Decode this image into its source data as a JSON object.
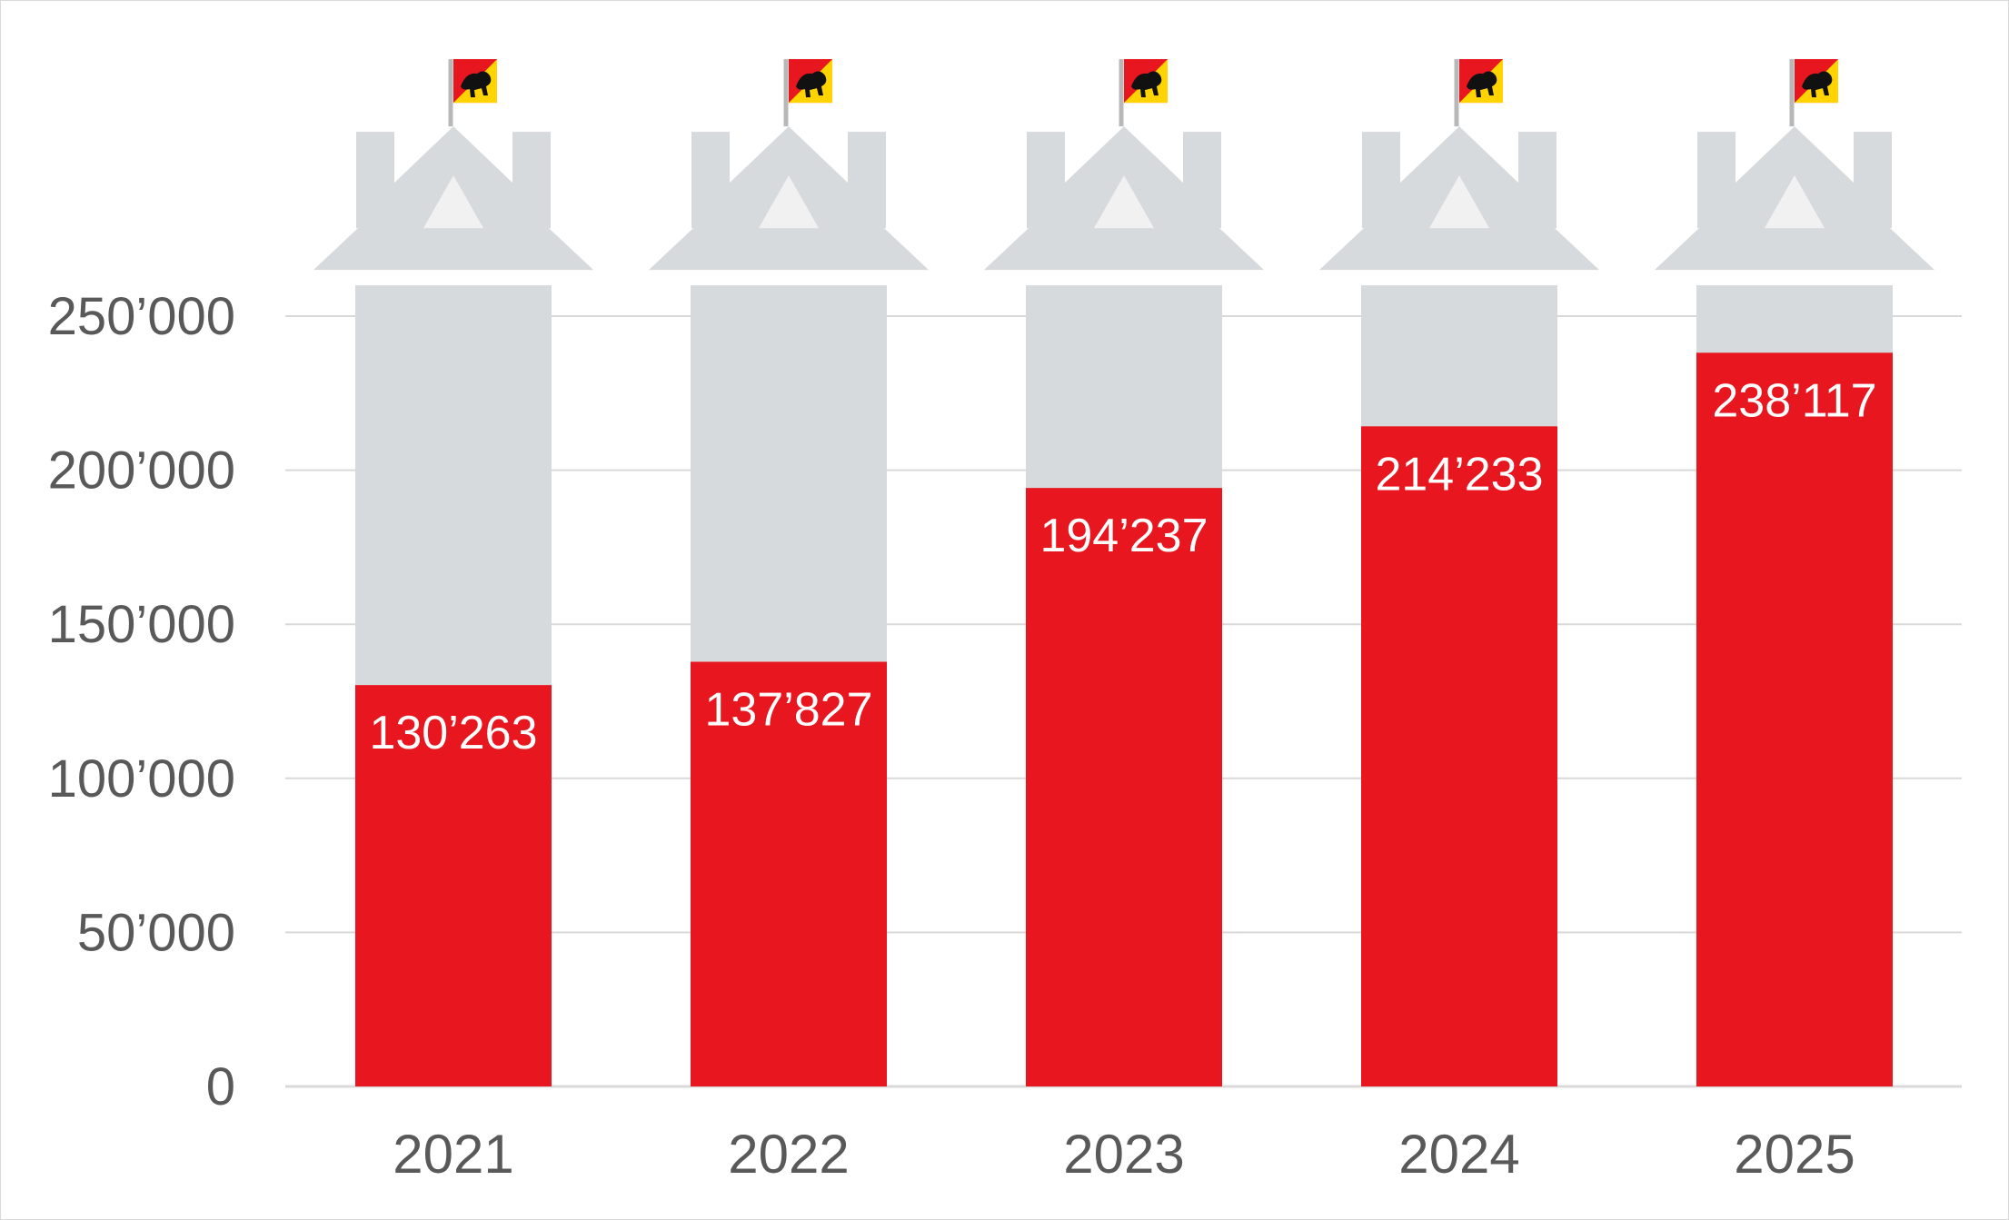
{
  "chart_data": {
    "type": "bar",
    "title": "",
    "xlabel": "",
    "ylabel": "",
    "categories": [
      "2021",
      "2022",
      "2023",
      "2024",
      "2025"
    ],
    "values": [
      130263,
      137827,
      194237,
      214233,
      238117
    ],
    "value_labels": [
      "130’263",
      "137’827",
      "194’237",
      "214’233",
      "238’117"
    ],
    "background_bar_value": 260000,
    "ylim": [
      0,
      260000
    ],
    "yticks": [
      0,
      50000,
      100000,
      150000,
      200000,
      250000
    ],
    "ytick_labels": [
      "0",
      "50’000",
      "100’000",
      "150’000",
      "200’000",
      "250’000"
    ],
    "grid": true,
    "legend": "none",
    "decoration": "each bar is drawn as a grey castle tower topped with a Bern canton flag",
    "colors": {
      "bar": "#e8161f",
      "bar_background": "#d7dadd",
      "castle": "#d7dadd",
      "castle_window": "#f1f1f1",
      "grid": "#d9d9d9",
      "axis_text": "#595959",
      "data_label": "#ffffff",
      "flag_red": "#e8161f",
      "flag_yellow": "#ffd400",
      "flag_bear": "#111111"
    }
  }
}
